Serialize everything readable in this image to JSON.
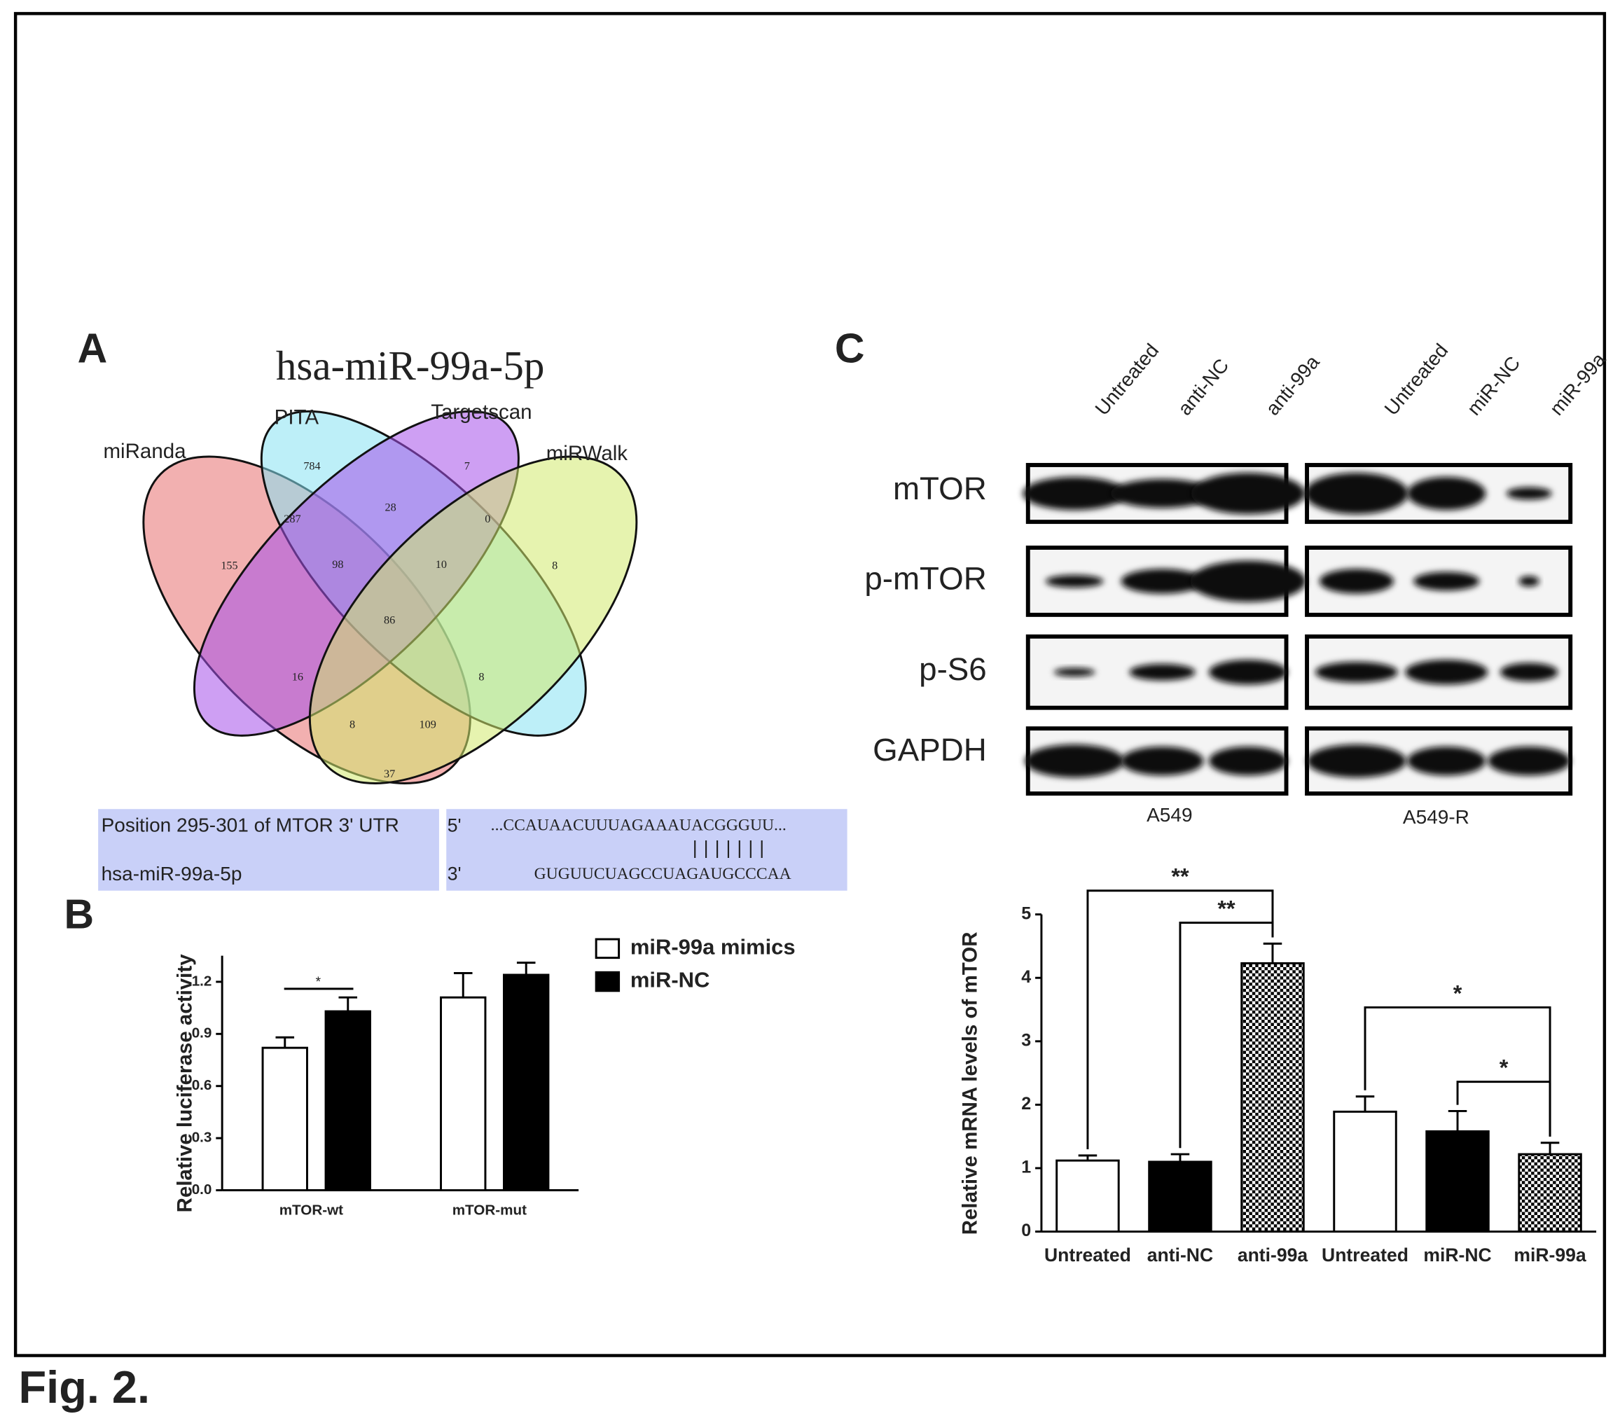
{
  "figure_label": "Fig. 2.",
  "panel_labels": [
    "A",
    "B",
    "C"
  ],
  "venn": {
    "title": "hsa-miR-99a-5p",
    "sets": [
      {
        "name": "miRanda",
        "color": "#e8706f"
      },
      {
        "name": "PITA",
        "color": "#86e2f2"
      },
      {
        "name": "Targetscan",
        "color": "#a650ea"
      },
      {
        "name": "miRWalk",
        "color": "#d2ea6e"
      }
    ],
    "counts": [
      784,
      7,
      287,
      28,
      0,
      155,
      98,
      10,
      8,
      86,
      16,
      8,
      8,
      109,
      37
    ]
  },
  "alignment": {
    "target_label": "Position 295-301 of MTOR 3' UTR",
    "target_end": "5'",
    "target_seq": "...CCAUAACUUUAGAAAUACGGGUU...",
    "pairing": "|||||||",
    "mirna_label": "hsa-miR-99a-5p",
    "mirna_end": "3'",
    "mirna_seq": "GUGUUCUAGCCUAGAUGCCCAA"
  },
  "western_blot": {
    "lanes": [
      "Untreated",
      "anti-NC",
      "anti-99a",
      "Untreated",
      "miR-NC",
      "miR-99a"
    ],
    "proteins": [
      "mTOR",
      "p-mTOR",
      "p-S6",
      "GAPDH"
    ],
    "cell_lines": [
      "A549",
      "A549-R"
    ]
  },
  "chart_data": [
    {
      "type": "bar",
      "y_label": "Relative luciferase activity",
      "categories": [
        "mTOR-wt",
        "mTOR-mut"
      ],
      "series": [
        {
          "name": "miR-99a mimics",
          "color": "#ffffff",
          "values": [
            0.82,
            1.11
          ],
          "errors": [
            0.06,
            0.14
          ]
        },
        {
          "name": "miR-NC",
          "color": "#000000",
          "values": [
            1.03,
            1.24
          ],
          "errors": [
            0.08,
            0.07
          ]
        }
      ],
      "ylim": [
        0,
        1.35
      ],
      "yticks": [
        {
          "value": 0,
          "label": "0.0"
        },
        0.3,
        0.6,
        0.9,
        1.2
      ],
      "annotations": [
        {
          "label": "*"
        }
      ]
    },
    {
      "type": "bar",
      "y_label": "Relative mRNA levels of mTOR",
      "categories": [
        "Untreated",
        "anti-NC",
        "anti-99a",
        "Untreated",
        "miR-NC",
        "miR-99a"
      ],
      "values": [
        1.12,
        1.1,
        4.23,
        1.89,
        1.58,
        1.22
      ],
      "errors": [
        0.08,
        0.12,
        0.31,
        0.24,
        0.32,
        0.18
      ],
      "colors": [
        "#ffffff",
        "#000000",
        "checker",
        "#ffffff",
        "#000000",
        "checker"
      ],
      "ylim": [
        0,
        5
      ],
      "yticks": [
        0,
        1,
        2,
        3,
        4,
        5
      ],
      "annotations": [
        {
          "label": "**",
          "from": 0,
          "to": 2
        },
        {
          "label": "**",
          "from": 1,
          "to": 2
        },
        {
          "label": "*",
          "from": 3,
          "to": 5
        },
        {
          "label": "*",
          "from": 4,
          "to": 5
        }
      ]
    }
  ]
}
